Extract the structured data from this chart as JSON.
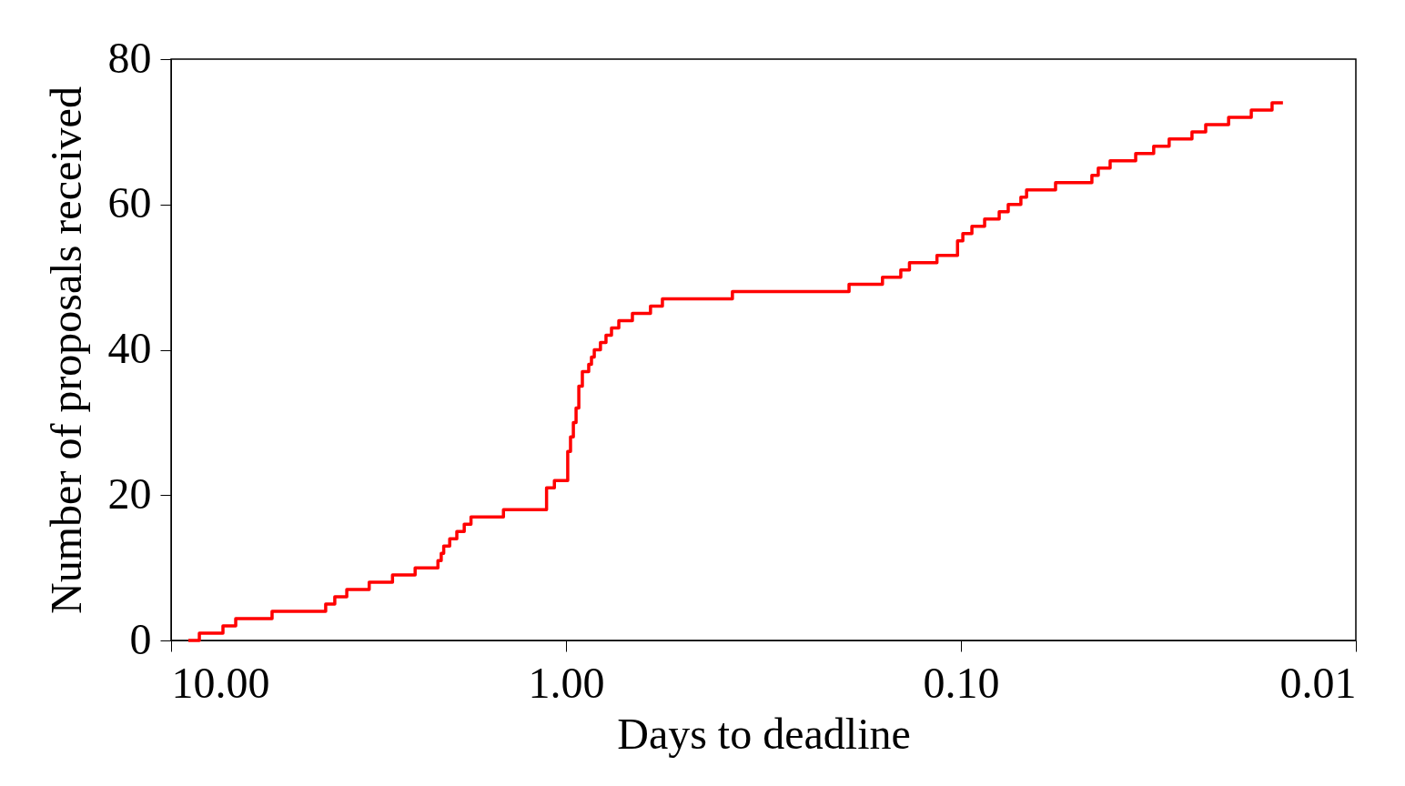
{
  "chart_data": {
    "type": "step",
    "xlabel": "Days to deadline",
    "ylabel": "Number of proposals received",
    "x": [
      9.04,
      8.48,
      7.39,
      6.86,
      5.55,
      4.06,
      3.85,
      3.59,
      3.15,
      2.75,
      2.41,
      2.11,
      2.07,
      2.04,
      1.97,
      1.89,
      1.81,
      1.74,
      1.44,
      1.12,
      1.07,
      0.99,
      0.974,
      0.958,
      0.943,
      0.928,
      0.909,
      0.876,
      0.862,
      0.848,
      0.818,
      0.792,
      0.767,
      0.735,
      0.679,
      0.611,
      0.57,
      0.379,
      0.192,
      0.158,
      0.142,
      0.135,
      0.115,
      0.102,
      0.0989,
      0.0938,
      0.0871,
      0.08,
      0.0759,
      0.0705,
      0.0682,
      0.0576,
      0.0466,
      0.0449,
      0.0419,
      0.0361,
      0.0325,
      0.0297,
      0.026,
      0.024,
      0.021,
      0.0184,
      0.0163,
      0.0153
    ],
    "series": [
      {
        "color": "#ff0000",
        "values": [
          0,
          1,
          2,
          3,
          4,
          5,
          6,
          7,
          8,
          9,
          10,
          11,
          12,
          13,
          14,
          15,
          16,
          17,
          18,
          21,
          22,
          26,
          28,
          30,
          32,
          35,
          37,
          38,
          39,
          40,
          41,
          42,
          43,
          44,
          45,
          46,
          47,
          48,
          49,
          50,
          51,
          52,
          53,
          55,
          56,
          57,
          58,
          59,
          60,
          61,
          62,
          63,
          64,
          65,
          66,
          67,
          68,
          69,
          70,
          71,
          72,
          73,
          74,
          74
        ]
      }
    ],
    "log": "x",
    "xlim": [
      10,
      0.01
    ],
    "xticks": [
      {
        "value": 10,
        "label": "10.00"
      },
      {
        "value": 1,
        "label": "1.00"
      },
      {
        "value": 0.1,
        "label": "0.10"
      },
      {
        "value": 0.01,
        "label": "0.01"
      }
    ],
    "ylim": [
      0,
      80
    ],
    "yticks": [
      0,
      20,
      40,
      60,
      80
    ],
    "grid": false,
    "marker": "none",
    "line_style": "solid"
  }
}
